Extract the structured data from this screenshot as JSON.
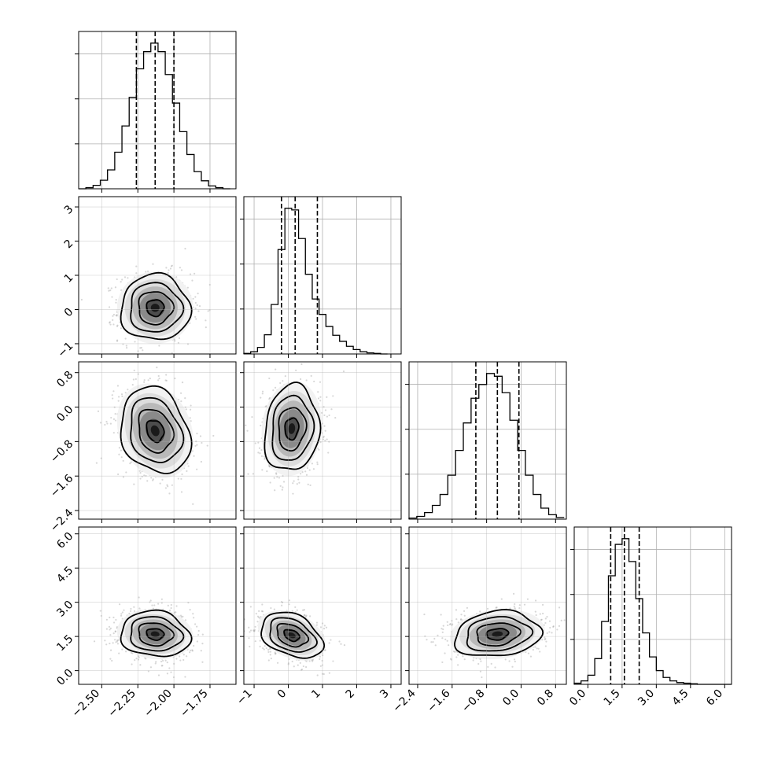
{
  "colors": {
    "background": "#ffffff",
    "frame": "#000000",
    "grid": "#b0b0b0",
    "scatter": "#8c8c8c"
  },
  "chart_data": {
    "type": "corner",
    "grid": true,
    "n_params": 4,
    "quantile_lines": "dashed",
    "params": [
      {
        "range": [
          -2.66,
          -1.57
        ],
        "ticks": [
          -2.5,
          -2.25,
          -2.0,
          -1.75
        ],
        "tick_labels": [
          "−2.50",
          "−2.25",
          "−2.00",
          "−1.75"
        ],
        "quantiles": [
          -2.26,
          -2.13,
          -2.0
        ]
      },
      {
        "range": [
          -1.3,
          3.3
        ],
        "ticks": [
          -1,
          0,
          1,
          2,
          3
        ],
        "tick_labels": [
          "−1",
          "0",
          "1",
          "2",
          "3"
        ],
        "quantiles": [
          -0.2,
          0.2,
          0.85
        ]
      },
      {
        "range": [
          -2.6,
          1.05
        ],
        "ticks": [
          -2.4,
          -1.6,
          -0.8,
          0.0,
          0.8
        ],
        "tick_labels": [
          "−2.4",
          "−1.6",
          "−0.8",
          "0.0",
          "0.8"
        ],
        "quantiles": [
          -1.05,
          -0.55,
          -0.05
        ]
      },
      {
        "range": [
          -0.6,
          6.3
        ],
        "ticks": [
          0.0,
          1.5,
          3.0,
          4.5,
          6.0
        ],
        "tick_labels": [
          "0.0",
          "1.5",
          "3.0",
          "4.5",
          "6.0"
        ],
        "quantiles": [
          1.0,
          1.6,
          2.25
        ]
      }
    ],
    "histograms": [
      {
        "param": 0,
        "bins": [
          -2.66,
          -2.61,
          -2.56,
          -2.51,
          -2.46,
          -2.41,
          -2.36,
          -2.31,
          -2.26,
          -2.21,
          -2.16,
          -2.11,
          -2.06,
          -2.01,
          -1.96,
          -1.91,
          -1.86,
          -1.81,
          -1.76,
          -1.71,
          -1.66,
          -1.61
        ],
        "counts": [
          0,
          2,
          6,
          15,
          33,
          64,
          110,
          160,
          210,
          240,
          255,
          240,
          200,
          150,
          100,
          60,
          30,
          14,
          5,
          2,
          0
        ]
      },
      {
        "param": 1,
        "bins": [
          -1.3,
          -1.1,
          -0.9,
          -0.7,
          -0.5,
          -0.3,
          -0.1,
          0.1,
          0.3,
          0.5,
          0.7,
          0.9,
          1.1,
          1.3,
          1.5,
          1.7,
          1.9,
          2.1,
          2.3,
          2.5,
          2.7,
          2.9
        ],
        "counts": [
          1,
          4,
          12,
          35,
          90,
          190,
          265,
          262,
          210,
          145,
          100,
          72,
          50,
          34,
          23,
          14,
          8,
          4,
          2,
          1,
          0
        ]
      },
      {
        "param": 2,
        "bins": [
          -2.6,
          -2.42,
          -2.24,
          -2.06,
          -1.88,
          -1.7,
          -1.52,
          -1.34,
          -1.16,
          -0.98,
          -0.8,
          -0.62,
          -0.44,
          -0.26,
          -0.08,
          0.1,
          0.28,
          0.46,
          0.64,
          0.82,
          1.0
        ],
        "counts": [
          2,
          5,
          12,
          25,
          45,
          80,
          125,
          175,
          220,
          245,
          265,
          260,
          230,
          180,
          125,
          80,
          45,
          20,
          8,
          3
        ]
      },
      {
        "param": 3,
        "bins": [
          -0.6,
          -0.3,
          0.0,
          0.3,
          0.6,
          0.9,
          1.2,
          1.5,
          1.8,
          2.1,
          2.4,
          2.7,
          3.0,
          3.3,
          3.6,
          3.9,
          4.2,
          4.5,
          4.8,
          5.1,
          5.4,
          5.7,
          6.0,
          6.3
        ],
        "counts": [
          2,
          6,
          16,
          45,
          110,
          190,
          245,
          255,
          215,
          150,
          90,
          48,
          24,
          12,
          6,
          3,
          2,
          1,
          0,
          0,
          0,
          0,
          0
        ]
      }
    ],
    "pairs": [
      {
        "x": 0,
        "y": 1,
        "center": [
          -2.13,
          0.05
        ],
        "sd": [
          0.12,
          0.48
        ],
        "rho": 0.0
      },
      {
        "x": 0,
        "y": 2,
        "center": [
          -2.13,
          -0.55
        ],
        "sd": [
          0.12,
          0.5
        ],
        "rho": -0.2
      },
      {
        "x": 1,
        "y": 2,
        "center": [
          0.1,
          -0.5
        ],
        "sd": [
          0.4,
          0.5
        ],
        "rho": 0.1
      },
      {
        "x": 0,
        "y": 3,
        "center": [
          -2.13,
          1.6
        ],
        "sd": [
          0.12,
          0.5
        ],
        "rho": -0.1
      },
      {
        "x": 1,
        "y": 3,
        "center": [
          0.1,
          1.55
        ],
        "sd": [
          0.45,
          0.5
        ],
        "rho": -0.35
      },
      {
        "x": 2,
        "y": 3,
        "center": [
          -0.55,
          1.6
        ],
        "sd": [
          0.5,
          0.5
        ],
        "rho": 0.15
      }
    ],
    "contour_levels": [
      0.5,
      1.0,
      1.5,
      2.0
    ]
  }
}
